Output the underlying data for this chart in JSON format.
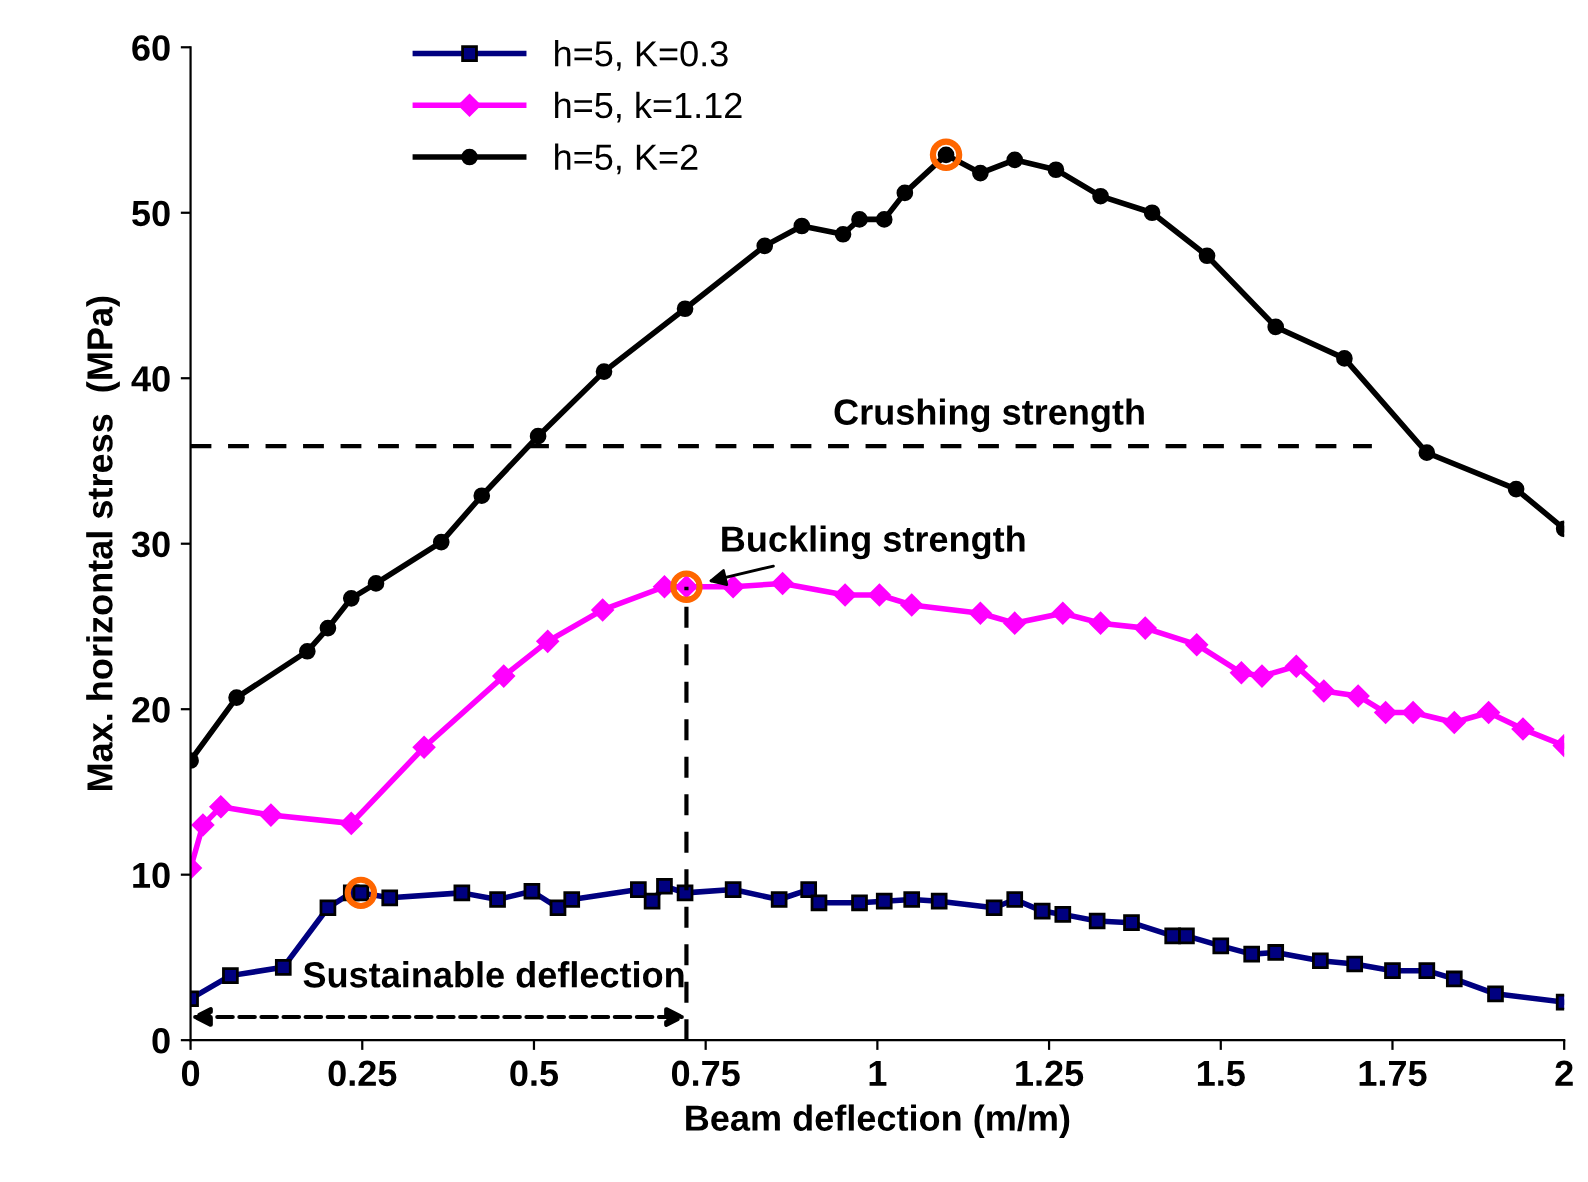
{
  "chart_data": {
    "type": "line",
    "xlabel": "Beam deflection (m/m)",
    "ylabel": "Max. horizontal stress  (MPa)",
    "xlim": [
      0,
      2
    ],
    "xticks": [
      0,
      0.25,
      0.5,
      0.75,
      1,
      1.25,
      1.5,
      1.75,
      2
    ],
    "ylim": [
      0,
      60
    ],
    "yticks": [
      0,
      10,
      20,
      30,
      40,
      50,
      60
    ],
    "grid": false,
    "legend": "top left",
    "series": [
      {
        "name": "h=5, K=0.3",
        "color": "#000080",
        "marker": "square",
        "x": [
          0,
          0.058,
          0.135,
          0.2,
          0.234,
          0.248,
          0.29,
          0.395,
          0.447,
          0.497,
          0.535,
          0.555,
          0.652,
          0.672,
          0.69,
          0.72,
          0.79,
          0.857,
          0.9,
          0.915,
          0.974,
          1.01,
          1.05,
          1.09,
          1.17,
          1.2,
          1.24,
          1.27,
          1.32,
          1.37,
          1.43,
          1.45,
          1.5,
          1.545,
          1.58,
          1.645,
          1.695,
          1.75,
          1.8,
          1.84,
          1.9,
          2.0
        ],
        "values": [
          2.5,
          3.9,
          4.4,
          8.0,
          8.9,
          8.9,
          8.6,
          8.9,
          8.5,
          9.0,
          8.0,
          8.5,
          9.1,
          8.4,
          9.3,
          8.9,
          9.1,
          8.5,
          9.1,
          8.3,
          8.3,
          8.4,
          8.5,
          8.4,
          8.0,
          8.5,
          7.8,
          7.6,
          7.2,
          7.1,
          6.3,
          6.3,
          5.7,
          5.2,
          5.3,
          4.8,
          4.6,
          4.2,
          4.2,
          3.7,
          2.8,
          2.3
        ]
      },
      {
        "name": "h=5, k=1.12",
        "color": "#ff00ff",
        "marker": "diamond",
        "x": [
          0,
          0.018,
          0.044,
          0.117,
          0.234,
          0.34,
          0.456,
          0.52,
          0.6,
          0.69,
          0.722,
          0.79,
          0.862,
          0.953,
          1.003,
          1.05,
          1.15,
          1.2,
          1.27,
          1.325,
          1.39,
          1.465,
          1.53,
          1.56,
          1.61,
          1.65,
          1.7,
          1.74,
          1.78,
          1.84,
          1.89,
          1.94,
          2.0
        ],
        "values": [
          10.4,
          13.0,
          14.1,
          13.6,
          13.1,
          17.7,
          22.0,
          24.1,
          26.0,
          27.4,
          27.4,
          27.4,
          27.6,
          26.9,
          26.9,
          26.3,
          25.8,
          25.2,
          25.8,
          25.2,
          24.9,
          23.9,
          22.2,
          22.0,
          22.6,
          21.1,
          20.8,
          19.8,
          19.8,
          19.2,
          19.8,
          18.8,
          17.8
        ]
      },
      {
        "name": "h=5, K=2",
        "color": "#000000",
        "marker": "circle",
        "x": [
          0,
          0.067,
          0.17,
          0.2,
          0.234,
          0.27,
          0.365,
          0.424,
          0.506,
          0.602,
          0.72,
          0.836,
          0.89,
          0.95,
          0.974,
          1.01,
          1.04,
          1.1,
          1.15,
          1.2,
          1.26,
          1.325,
          1.4,
          1.48,
          1.58,
          1.68,
          1.8,
          1.93,
          2.0
        ],
        "values": [
          16.9,
          20.7,
          23.5,
          24.9,
          26.7,
          27.6,
          30.1,
          32.9,
          36.5,
          40.4,
          44.2,
          48.0,
          49.2,
          48.7,
          49.6,
          49.6,
          51.2,
          53.5,
          52.4,
          53.2,
          52.6,
          51.0,
          50.0,
          47.4,
          43.1,
          41.2,
          35.5,
          33.3,
          30.9
        ]
      },
      {
        "type": "scatter",
        "color": "#ff6600",
        "marker": "circle",
        "x": [
          0.248,
          0.722,
          1.1
        ],
        "values": [
          8.9,
          27.4,
          53.5
        ]
      },
      {
        "color": "#000000",
        "marker": "none",
        "line_style": "dashed",
        "x": [
          0,
          1.72
        ],
        "values": [
          35.9,
          35.9
        ]
      },
      {
        "color": "#000000",
        "marker": "none",
        "line_style": "dashed",
        "x": [
          0.722,
          0.722
        ],
        "values": [
          0,
          27.4
        ]
      }
    ],
    "annotations": [
      "Crushing strength",
      {
        "text": "Buckling strength",
        "x": 0.722,
        "y": 27.4
      },
      {
        "text": "Sustainable deflection",
        "x": 0.722,
        "y": 1.4
      }
    ]
  }
}
